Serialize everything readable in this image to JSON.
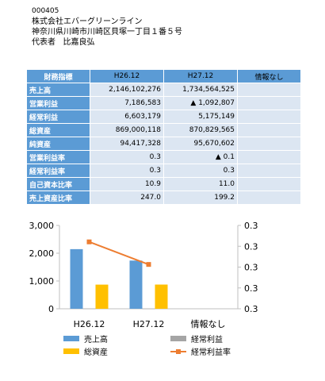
{
  "company": {
    "code": "000405",
    "name": "株式会社エバーグリーンライン",
    "address": "神奈川県川崎市川崎区貝塚一丁目１番５号",
    "representative_label": "代表者",
    "representative_name": "比嘉良弘"
  },
  "table": {
    "headers": [
      "財務指標",
      "H26.12",
      "H27.12",
      "情報なし"
    ],
    "rows": [
      {
        "label": "売上高",
        "v1": "2,146,102,276",
        "v2": "1,734,564,525",
        "v3": ""
      },
      {
        "label": "営業利益",
        "v1": "7,186,583",
        "v2": "▲ 1,092,807",
        "v3": ""
      },
      {
        "label": "経常利益",
        "v1": "6,603,179",
        "v2": "5,175,149",
        "v3": ""
      },
      {
        "label": "総資産",
        "v1": "869,000,118",
        "v2": "870,829,565",
        "v3": ""
      },
      {
        "label": "純資産",
        "v1": "94,417,328",
        "v2": "95,670,602",
        "v3": ""
      },
      {
        "label": "営業利益率",
        "v1": "0.3",
        "v2": "▲ 0.1",
        "v3": ""
      },
      {
        "label": "経常利益率",
        "v1": "0.3",
        "v2": "0.3",
        "v3": ""
      },
      {
        "label": "自己資本比率",
        "v1": "10.9",
        "v2": "11.0",
        "v3": ""
      },
      {
        "label": "売上資産比率",
        "v1": "247.0",
        "v2": "199.2",
        "v3": ""
      }
    ]
  },
  "chart_data": {
    "type": "bar",
    "categories": [
      "H26.12",
      "H27.12",
      "情報なし"
    ],
    "y_left": {
      "ticks": [
        "0",
        "1,000",
        "2,000",
        "3,000"
      ],
      "range": [
        0,
        3000
      ]
    },
    "y_right": {
      "ticks": [
        "0.3",
        "0.3",
        "0.3",
        "0.3",
        "0.3"
      ]
    },
    "series": [
      {
        "name": "売上高",
        "kind": "bar",
        "color": "#5b9bd5",
        "values": [
          2146,
          1735,
          null
        ]
      },
      {
        "name": "経常利益",
        "kind": "bar",
        "color": "#a5a5a5",
        "values": [
          7,
          5,
          null
        ]
      },
      {
        "name": "総資産",
        "kind": "bar",
        "color": "#ffc000",
        "values": [
          869,
          871,
          null
        ]
      },
      {
        "name": "経常利益率",
        "kind": "line",
        "axis": "right",
        "color": "#ed7d31",
        "values": [
          0.30769,
          0.29835,
          null
        ],
        "right_range": [
          0.28,
          0.3145
        ]
      }
    ],
    "legend_position": "bottom"
  }
}
